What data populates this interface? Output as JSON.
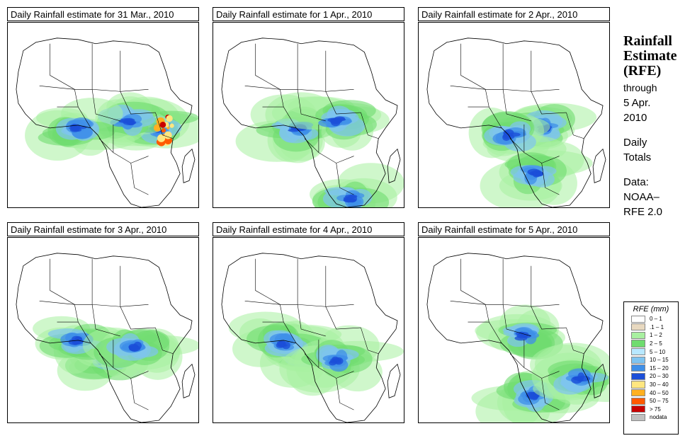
{
  "panels": [
    {
      "title": "Daily Rainfall estimate for  31 Mar., 2010",
      "intensity": "heavy-east"
    },
    {
      "title": "Daily Rainfall estimate for  1 Apr., 2010",
      "intensity": "moderate-south"
    },
    {
      "title": "Daily Rainfall estimate for  2 Apr., 2010",
      "intensity": "moderate-central"
    },
    {
      "title": "Daily Rainfall estimate for  3 Apr., 2010",
      "intensity": "light-central"
    },
    {
      "title": "Daily Rainfall estimate for  4 Apr., 2010",
      "intensity": "moderate-west"
    },
    {
      "title": "Daily Rainfall estimate for  5 Apr., 2010",
      "intensity": "moderate-south-east"
    }
  ],
  "side": {
    "title_line1": "Rainfall",
    "title_line2": "Estimate",
    "title_line3": "(RFE)",
    "through": "through",
    "date_line1": "5 Apr.",
    "date_line2": "2010",
    "daily_line1": "Daily",
    "daily_line2": "Totals",
    "data_line1": "Data:",
    "data_line2": "NOAA–",
    "data_line3": "RFE 2.0"
  },
  "legend": {
    "title": "RFE (mm)",
    "items": [
      {
        "label": "0 – 1",
        "color": "#ffffff"
      },
      {
        "label": ".1 – 1",
        "color": "#e8d9c0"
      },
      {
        "label": "1 – 2",
        "color": "#a8f0a0"
      },
      {
        "label": "2 – 5",
        "color": "#6fdc6f"
      },
      {
        "label": "5 – 10",
        "color": "#b8e8ff"
      },
      {
        "label": "10 – 15",
        "color": "#7fc4f0"
      },
      {
        "label": "15 – 20",
        "color": "#3f8fe8"
      },
      {
        "label": "20 – 30",
        "color": "#1c4fd8"
      },
      {
        "label": "30 – 40",
        "color": "#ffe680"
      },
      {
        "label": "40 – 50",
        "color": "#ffb020"
      },
      {
        "label": "50 – 75",
        "color": "#ff5a00"
      },
      {
        "label": "> 75",
        "color": "#c80000"
      },
      {
        "label": "nodata",
        "color": "#c0c0c0"
      }
    ]
  }
}
